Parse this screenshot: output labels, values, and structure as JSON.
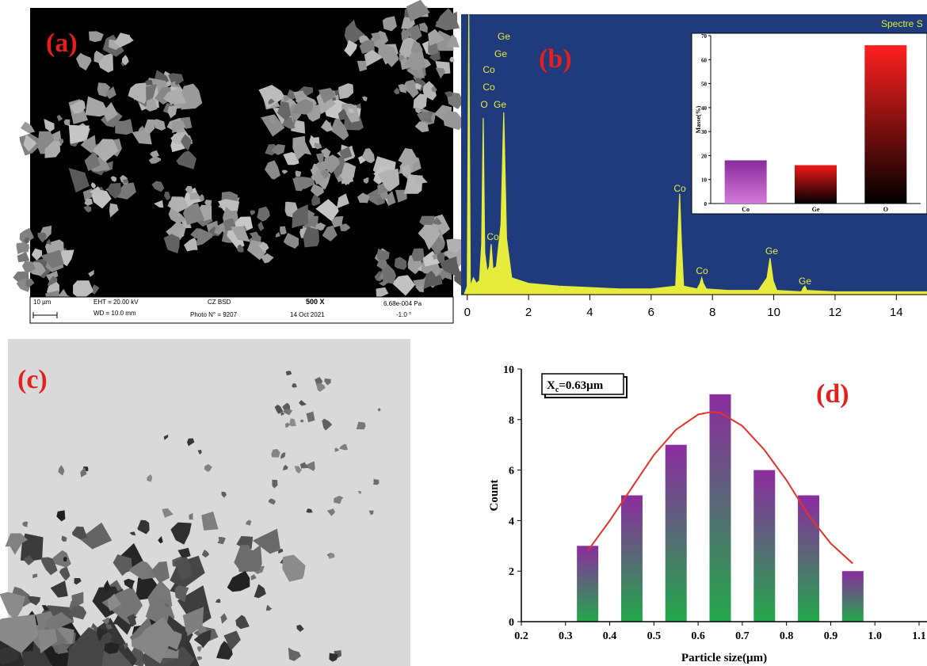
{
  "panels": {
    "a": {
      "label": "(a)",
      "info_bar": [
        "10 µm",
        "EHT = 20.00 kV",
        "WD = 10.0 mm",
        "CZ BSD",
        "Photo N° = 9207",
        "500 X",
        "14 Oct 2021",
        "6.68e-004 Pa",
        "-1.0 °"
      ]
    },
    "b": {
      "label": "(b)"
    },
    "c": {
      "label": "(c)"
    },
    "d": {
      "label": "(d)"
    }
  },
  "chart_data": [
    {
      "type": "area",
      "title": "Spectre S",
      "color": "#e6ec3c",
      "background": "#1f3b7c",
      "x": [
        -0.1,
        0,
        0.05,
        0.1,
        0.2,
        0.3,
        0.4,
        0.47,
        0.52,
        0.57,
        0.65,
        0.72,
        0.78,
        0.84,
        0.95,
        1.1,
        1.19,
        1.28,
        1.45,
        2,
        3,
        4,
        5,
        6,
        6.8,
        6.87,
        6.93,
        6.99,
        7.06,
        7.5,
        7.6,
        7.65,
        7.7,
        7.8,
        8.5,
        9.5,
        9.78,
        9.88,
        9.98,
        10.1,
        10.9,
        10.97,
        11.02,
        11.08,
        12,
        13,
        14,
        15
      ],
      "values": [
        0,
        3,
        100,
        3,
        6,
        4,
        5,
        18,
        63,
        15,
        8,
        10,
        18,
        9,
        10,
        25,
        65,
        20,
        6,
        4,
        3,
        2.5,
        2,
        2,
        3,
        20,
        36,
        18,
        3,
        2,
        4,
        6,
        4,
        2,
        1.5,
        1.5,
        6,
        13,
        5,
        1.5,
        1,
        2.5,
        3,
        1.5,
        1,
        1,
        1,
        1
      ],
      "xlim": [
        -0.2,
        15
      ],
      "ylim": [
        0,
        100
      ],
      "xticks": [
        0,
        2,
        4,
        6,
        8,
        10,
        12,
        14
      ],
      "peak_labels": [
        "Ge",
        "Ge",
        "Co",
        "Co",
        "O",
        "Ge",
        "Co",
        "Co",
        "Co",
        "Ge",
        "Ge"
      ]
    },
    {
      "type": "bar",
      "categories": [
        "Co",
        "Ge",
        "O"
      ],
      "values": [
        18,
        16,
        66
      ],
      "ylabel": "Masse(%)",
      "ylim": [
        0,
        70
      ],
      "yticks": [
        0,
        10,
        20,
        30,
        40,
        50,
        60,
        70
      ],
      "colors": [
        [
          "#8a2a9c",
          "#d27ad8"
        ],
        [
          "#f01818",
          "#000000"
        ],
        [
          "#ff2020",
          "#000000"
        ]
      ]
    },
    {
      "type": "histogram",
      "xlabel": "Particle size(µm)",
      "ylabel": "Count",
      "x": [
        0.35,
        0.45,
        0.55,
        0.65,
        0.75,
        0.85,
        0.95
      ],
      "values": [
        3,
        5,
        7,
        9,
        6,
        5,
        2
      ],
      "colors": [
        "#8b2c9f",
        "#22a84a"
      ],
      "xlim": [
        0.2,
        1.1
      ],
      "ylim": [
        0,
        10
      ],
      "xticks": [
        0.2,
        0.3,
        0.4,
        0.5,
        0.6,
        0.7,
        0.8,
        0.9,
        {
          "value": 1,
          "label": "1.0"
        },
        1.1
      ],
      "yticks": [
        0,
        2,
        4,
        6,
        8,
        10
      ],
      "annotation": [
        "X",
        "c",
        "=0.63µm"
      ],
      "fit_curve": {
        "color": "#e8302a",
        "x": [
          0.35,
          0.4,
          0.45,
          0.5,
          0.55,
          0.6,
          0.63,
          0.65,
          0.7,
          0.75,
          0.8,
          0.85,
          0.9,
          0.95
        ],
        "values": [
          2.8,
          4,
          5.3,
          6.6,
          7.6,
          8.2,
          8.3,
          8.27,
          7.75,
          6.8,
          5.6,
          4.2,
          3.1,
          2.3
        ]
      }
    }
  ]
}
